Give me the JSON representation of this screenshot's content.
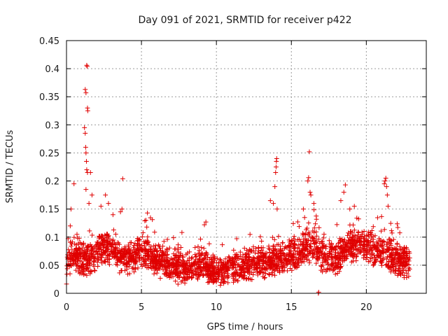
{
  "chart_data": {
    "type": "scatter",
    "title": "Day 091 of 2021, SRMTID for receiver p422",
    "xlabel": "GPS time / hours",
    "ylabel": "SRMTID / TECUs",
    "xlim": [
      0,
      24
    ],
    "ylim": [
      0,
      0.45
    ],
    "xticks": [
      0,
      5,
      10,
      15,
      20
    ],
    "yticks": [
      0,
      0.05,
      0.1,
      0.15,
      0.2,
      0.25,
      0.3,
      0.35,
      0.4,
      0.45
    ],
    "xtick_labels": [
      "0",
      "5",
      "10",
      "15",
      "20"
    ],
    "ytick_labels": [
      "0",
      "0.05",
      "0.1",
      "0.15",
      "0.2",
      "0.25",
      "0.3",
      "0.35",
      "0.4",
      "0.45"
    ],
    "grid": true,
    "marker": "+",
    "color": "#e00000",
    "series": [
      {
        "name": "SRMTID",
        "x_range": [
          0,
          22.9
        ],
        "baseline_profile": [
          [
            0.0,
            0.045
          ],
          [
            0.5,
            0.07
          ],
          [
            1.0,
            0.06
          ],
          [
            1.5,
            0.06
          ],
          [
            2.0,
            0.07
          ],
          [
            2.5,
            0.085
          ],
          [
            3.0,
            0.08
          ],
          [
            3.5,
            0.065
          ],
          [
            4.0,
            0.06
          ],
          [
            5.0,
            0.075
          ],
          [
            6.0,
            0.06
          ],
          [
            7.0,
            0.05
          ],
          [
            8.0,
            0.045
          ],
          [
            9.0,
            0.05
          ],
          [
            10.0,
            0.04
          ],
          [
            11.0,
            0.045
          ],
          [
            12.0,
            0.05
          ],
          [
            13.0,
            0.055
          ],
          [
            14.0,
            0.06
          ],
          [
            15.0,
            0.065
          ],
          [
            16.0,
            0.08
          ],
          [
            16.5,
            0.09
          ],
          [
            17.0,
            0.065
          ],
          [
            18.0,
            0.06
          ],
          [
            19.0,
            0.085
          ],
          [
            19.5,
            0.09
          ],
          [
            20.0,
            0.08
          ],
          [
            21.0,
            0.075
          ],
          [
            22.0,
            0.06
          ],
          [
            22.9,
            0.055
          ]
        ],
        "peaks": [
          [
            0.25,
            0.12
          ],
          [
            0.3,
            0.15
          ],
          [
            0.5,
            0.195
          ],
          [
            0.7,
            0.105
          ],
          [
            1.25,
            0.363
          ],
          [
            1.3,
            0.357
          ],
          [
            1.35,
            0.406
          ],
          [
            1.38,
            0.404
          ],
          [
            1.4,
            0.33
          ],
          [
            1.42,
            0.325
          ],
          [
            1.2,
            0.295
          ],
          [
            1.25,
            0.285
          ],
          [
            1.28,
            0.26
          ],
          [
            1.3,
            0.25
          ],
          [
            1.33,
            0.235
          ],
          [
            1.35,
            0.22
          ],
          [
            1.4,
            0.215
          ],
          [
            1.3,
            0.185
          ],
          [
            1.6,
            0.215
          ],
          [
            1.5,
            0.16
          ],
          [
            1.7,
            0.175
          ],
          [
            2.3,
            0.155
          ],
          [
            2.6,
            0.175
          ],
          [
            2.8,
            0.16
          ],
          [
            3.1,
            0.14
          ],
          [
            3.6,
            0.145
          ],
          [
            3.7,
            0.15
          ],
          [
            3.75,
            0.204
          ],
          [
            5.3,
            0.13
          ],
          [
            5.4,
            0.143
          ],
          [
            9.2,
            0.122
          ],
          [
            9.3,
            0.127
          ],
          [
            13.6,
            0.165
          ],
          [
            13.8,
            0.16
          ],
          [
            13.9,
            0.19
          ],
          [
            13.95,
            0.215
          ],
          [
            13.98,
            0.225
          ],
          [
            14.0,
            0.235
          ],
          [
            14.02,
            0.24
          ],
          [
            14.05,
            0.15
          ],
          [
            15.8,
            0.15
          ],
          [
            16.1,
            0.2
          ],
          [
            16.15,
            0.206
          ],
          [
            16.2,
            0.252
          ],
          [
            16.25,
            0.18
          ],
          [
            16.3,
            0.175
          ],
          [
            16.5,
            0.16
          ],
          [
            18.3,
            0.165
          ],
          [
            18.5,
            0.18
          ],
          [
            18.6,
            0.193
          ],
          [
            18.9,
            0.15
          ],
          [
            19.2,
            0.155
          ],
          [
            21.2,
            0.195
          ],
          [
            21.25,
            0.2
          ],
          [
            21.3,
            0.205
          ],
          [
            21.35,
            0.19
          ],
          [
            21.4,
            0.175
          ],
          [
            21.45,
            0.155
          ]
        ],
        "outliers": [
          [
            16.8,
            0.0
          ],
          [
            16.82,
            0.002
          ]
        ]
      }
    ]
  }
}
